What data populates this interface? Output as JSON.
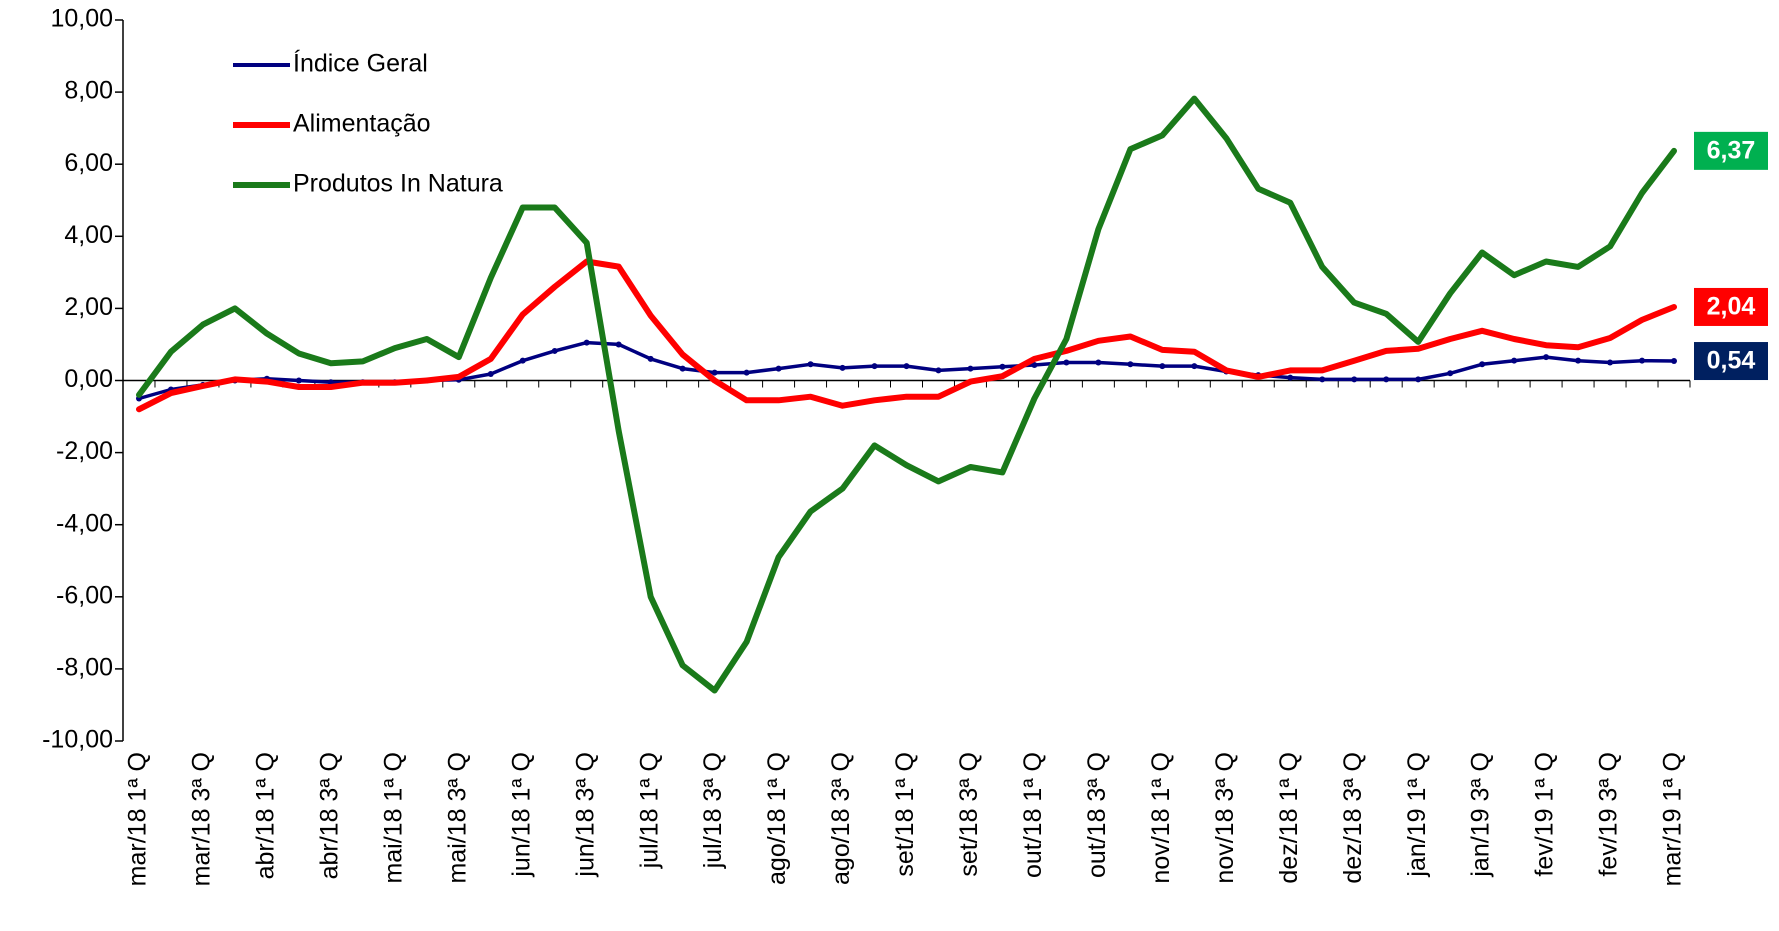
{
  "chart_data": {
    "type": "line",
    "categories": [
      "mar/18 1ª Q",
      null,
      "mar/18 3ª Q",
      null,
      "abr/18 1ª Q",
      null,
      "abr/18 3ª Q",
      null,
      "mai/18 1ª Q",
      null,
      "mai/18 3ª Q",
      null,
      "jun/18 1ª Q",
      null,
      "jun/18 3ª Q",
      null,
      "jul/18 1ª Q",
      null,
      "jul/18 3ª Q",
      null,
      "ago/18 1ª Q",
      null,
      "ago/18 3ª Q",
      null,
      "set/18 1ª Q",
      null,
      "set/18 3ª Q",
      null,
      "out/18 1ª Q",
      null,
      "out/18 3ª Q",
      null,
      "nov/18 1ª Q",
      null,
      "nov/18 3ª Q",
      null,
      "dez/18 1ª Q",
      null,
      "dez/18 3ª Q",
      null,
      "jan/19 1ª Q",
      null,
      "jan/19 3ª Q",
      null,
      "fev/19 1ª Q",
      null,
      "fev/19 3ª Q",
      null,
      "mar/19 1ª Q"
    ],
    "series": [
      {
        "name": "Índice Geral",
        "color": "#000080",
        "values": [
          -0.5,
          -0.25,
          -0.12,
          0.0,
          0.05,
          0.0,
          -0.05,
          -0.05,
          -0.05,
          0.0,
          0.02,
          0.18,
          0.55,
          0.82,
          1.05,
          1.0,
          0.6,
          0.33,
          0.22,
          0.22,
          0.33,
          0.45,
          0.35,
          0.4,
          0.4,
          0.28,
          0.33,
          0.38,
          0.43,
          0.5,
          0.5,
          0.45,
          0.4,
          0.4,
          0.25,
          0.15,
          0.08,
          0.03,
          0.03,
          0.03,
          0.03,
          0.2,
          0.45,
          0.55,
          0.65,
          0.55,
          0.5,
          0.55,
          0.54
        ],
        "value_labels": [
          null,
          null,
          null,
          null,
          null,
          null,
          null,
          null,
          null,
          null,
          null,
          null,
          null,
          null,
          null,
          null,
          null,
          null,
          null,
          null,
          null,
          null,
          null,
          null,
          null,
          null,
          null,
          null,
          null,
          null,
          null,
          null,
          null,
          null,
          null,
          null,
          null,
          null,
          null,
          null,
          null,
          null,
          null,
          null,
          null,
          null,
          null,
          null,
          "0,54"
        ],
        "label_color": "#002060"
      },
      {
        "name": "Alimentação",
        "color": "#ff0000",
        "values": [
          -0.8,
          -0.35,
          -0.15,
          0.03,
          -0.03,
          -0.18,
          -0.18,
          -0.06,
          -0.06,
          0.0,
          0.1,
          0.6,
          1.83,
          2.6,
          3.3,
          3.16,
          1.8,
          0.72,
          0.0,
          -0.55,
          -0.55,
          -0.45,
          -0.7,
          -0.55,
          -0.45,
          -0.45,
          -0.03,
          0.12,
          0.6,
          0.82,
          1.1,
          1.22,
          0.85,
          0.8,
          0.28,
          0.1,
          0.28,
          0.28,
          0.55,
          0.82,
          0.88,
          1.15,
          1.38,
          1.15,
          0.98,
          0.92,
          1.18,
          1.68,
          2.04
        ],
        "value_labels": [
          null,
          null,
          null,
          null,
          null,
          null,
          null,
          null,
          null,
          null,
          null,
          null,
          null,
          null,
          null,
          null,
          null,
          null,
          null,
          null,
          null,
          null,
          null,
          null,
          null,
          null,
          null,
          null,
          null,
          null,
          null,
          null,
          null,
          null,
          null,
          null,
          null,
          null,
          null,
          null,
          null,
          null,
          null,
          null,
          null,
          null,
          null,
          null,
          "2,04"
        ],
        "label_color": "#ff0000"
      },
      {
        "name": "Produtos In Natura",
        "color": "#1a7a1a",
        "values": [
          -0.4,
          0.8,
          1.55,
          2.0,
          1.3,
          0.75,
          0.48,
          0.53,
          0.9,
          1.15,
          0.65,
          2.85,
          4.8,
          4.8,
          3.82,
          -1.4,
          -6.0,
          -7.9,
          -8.6,
          -7.25,
          -4.9,
          -3.63,
          -3.0,
          -1.8,
          -2.35,
          -2.8,
          -2.4,
          -2.55,
          -0.5,
          1.15,
          4.2,
          6.42,
          6.8,
          7.82,
          6.72,
          5.32,
          4.93,
          3.15,
          2.16,
          1.85,
          1.07,
          2.42,
          3.55,
          2.92,
          3.3,
          3.15,
          3.72,
          5.2,
          6.37
        ],
        "value_labels": [
          null,
          null,
          null,
          null,
          null,
          null,
          null,
          null,
          null,
          null,
          null,
          null,
          null,
          null,
          null,
          null,
          null,
          null,
          null,
          null,
          null,
          null,
          null,
          null,
          null,
          null,
          null,
          null,
          null,
          null,
          null,
          null,
          null,
          null,
          null,
          null,
          null,
          null,
          null,
          null,
          null,
          null,
          null,
          null,
          null,
          null,
          null,
          null,
          "6,37"
        ],
        "label_color": "#00b050"
      }
    ],
    "ylim": [
      -10,
      10
    ],
    "yticks": [
      {
        "value": -10,
        "label": "-10,00"
      },
      {
        "value": -8,
        "label": "-8,00"
      },
      {
        "value": -6,
        "label": "-6,00"
      },
      {
        "value": -4,
        "label": "-4,00"
      },
      {
        "value": -2,
        "label": "-2,00"
      },
      {
        "value": 0,
        "label": "0,00"
      },
      {
        "value": 2,
        "label": "2,00"
      },
      {
        "value": 4,
        "label": "4,00"
      },
      {
        "value": 6,
        "label": "6,00"
      },
      {
        "value": 8,
        "label": "8,00"
      },
      {
        "value": 10,
        "label": "10,00"
      }
    ],
    "grid": false,
    "legend": "upper left"
  }
}
